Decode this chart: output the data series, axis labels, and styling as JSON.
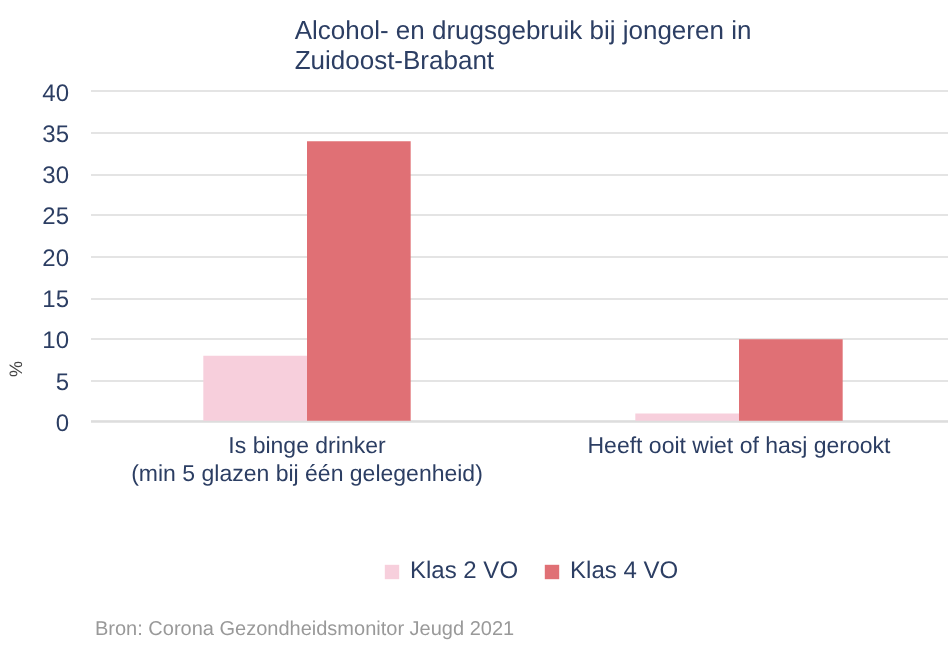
{
  "chart_data": {
    "type": "bar",
    "title": "Alcohol- en drugsgebruik bij jongeren in\nZuidoost-Brabant",
    "ylabel": "%",
    "categories": [
      "Is binge drinker\n(min 5 glazen bij één gelegenheid)",
      "Heeft ooit wiet of hasj gerookt"
    ],
    "series": [
      {
        "name": "Klas 2 VO",
        "color": "#f7cfdc",
        "values": [
          8,
          1
        ]
      },
      {
        "name": "Klas 4 VO",
        "color": "#e07075",
        "values": [
          34,
          10
        ]
      }
    ],
    "ylim": [
      0,
      40
    ],
    "yticks": [
      0,
      5,
      10,
      15,
      20,
      25,
      30,
      35,
      40
    ],
    "grid": "y",
    "legend": "bottom",
    "annotations": [
      "Bron:  Corona Gezondheidsmonitor Jeugd 2021"
    ]
  }
}
